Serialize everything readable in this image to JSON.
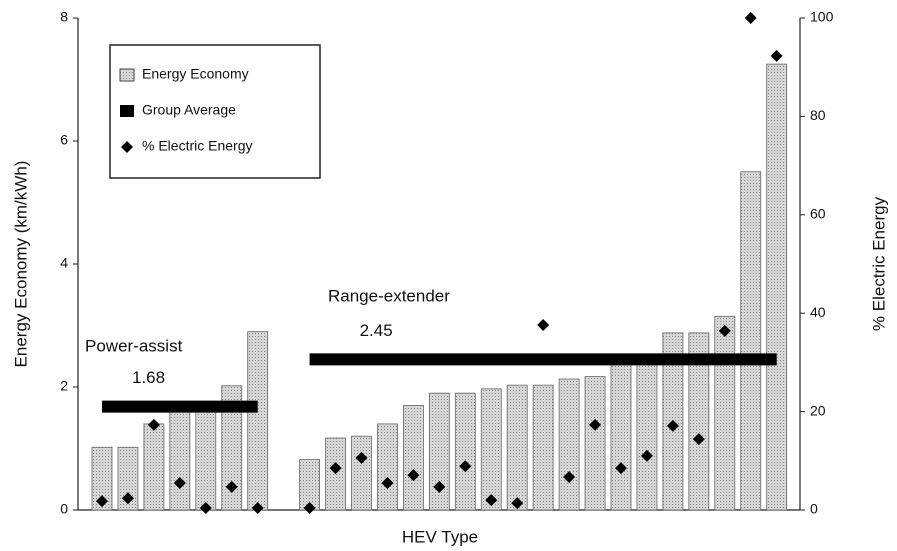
{
  "chart_data": {
    "type": "bar",
    "x_label": "HEV Type",
    "y_label": "Energy Economy (km/kWh)",
    "y2_label": "% Electric Energy",
    "annotations": [
      "Power-assist",
      "Range-extender"
    ],
    "categories": [
      null,
      null,
      null,
      null,
      null,
      null,
      null,
      null,
      null,
      null,
      null,
      null,
      null,
      null,
      null,
      null,
      null,
      null,
      null,
      null,
      null,
      null,
      null,
      null,
      null,
      null,
      null
    ],
    "series": [
      {
        "name": "Energy Economy",
        "type": "bar",
        "color": "#c4c4c4",
        "values": [
          1.02,
          1.02,
          1.4,
          1.62,
          1.65,
          2.02,
          2.9,
          null,
          0.82,
          1.17,
          1.2,
          1.4,
          1.7,
          1.9,
          1.9,
          1.97,
          2.03,
          2.03,
          2.13,
          2.17,
          2.4,
          2.4,
          2.88,
          2.88,
          3.15,
          5.5,
          7.25
        ]
      },
      {
        "name": "Group Average",
        "type": "segment",
        "color": "#000000",
        "values": [
          1.68,
          1.68,
          1.68,
          1.68,
          1.68,
          1.68,
          1.68,
          null,
          2.45,
          2.45,
          2.45,
          2.45,
          2.45,
          2.45,
          2.45,
          2.45,
          2.45,
          2.45,
          2.45,
          2.45,
          2.45,
          2.45,
          2.45,
          2.45,
          2.45,
          2.45,
          2.45
        ]
      },
      {
        "name": "% Electric Energy",
        "type": "scatter",
        "axis": "y2",
        "color": "#000000",
        "values": [
          1.8,
          2.4,
          17.3,
          5.5,
          0.4,
          4.7,
          0.4,
          null,
          0.4,
          8.5,
          10.6,
          5.5,
          7.1,
          4.7,
          8.9,
          2,
          1.4,
          37.6,
          6.7,
          17.3,
          8.5,
          11,
          17.1,
          14.4,
          36.4,
          100,
          92.3
        ]
      }
    ],
    "ylim": [
      0,
      8
    ],
    "yticks": [
      0,
      2,
      4,
      6,
      8
    ],
    "y2lim": [
      0,
      100
    ],
    "y2ticks": [
      0,
      20,
      40,
      60,
      80,
      100
    ],
    "legend": "upper left"
  }
}
